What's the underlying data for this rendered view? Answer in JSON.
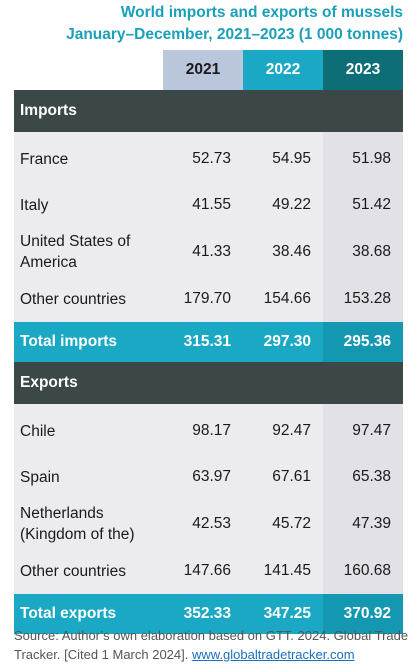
{
  "title": {
    "line1": "World imports and exports of mussels",
    "line2": "January–December, 2021–2023 (1 000 tonnes)"
  },
  "years": [
    "2021",
    "2022",
    "2023"
  ],
  "imports": {
    "header": "Imports",
    "rows": [
      {
        "label": "France",
        "values": [
          "52.73",
          "54.95",
          "51.98"
        ]
      },
      {
        "label": "Italy",
        "values": [
          "41.55",
          "49.22",
          "51.42"
        ]
      },
      {
        "label": "United States of America",
        "values": [
          "41.33",
          "38.46",
          "38.68"
        ]
      },
      {
        "label": "Other countries",
        "values": [
          "179.70",
          "154.66",
          "153.28"
        ]
      }
    ],
    "total": {
      "label": "Total imports",
      "values": [
        "315.31",
        "297.30",
        "295.36"
      ]
    }
  },
  "exports": {
    "header": "Exports",
    "rows": [
      {
        "label": "Chile",
        "values": [
          "98.17",
          "92.47",
          "97.47"
        ]
      },
      {
        "label": "Spain",
        "values": [
          "63.97",
          "67.61",
          "65.38"
        ]
      },
      {
        "label": "Netherlands (Kingdom of the)",
        "values": [
          "42.53",
          "45.72",
          "47.39"
        ]
      },
      {
        "label": "Other countries",
        "values": [
          "147.66",
          "141.45",
          "160.68"
        ]
      }
    ],
    "total": {
      "label": "Total exports",
      "values": [
        "352.33",
        "347.25",
        "370.92"
      ]
    }
  },
  "source": {
    "text": "Source: Author’s own elaboration based on GTT. 2024. Global Trade Tracker. [Cited 1 March 2024]. ",
    "link": "www.globaltradetracker.com"
  }
}
